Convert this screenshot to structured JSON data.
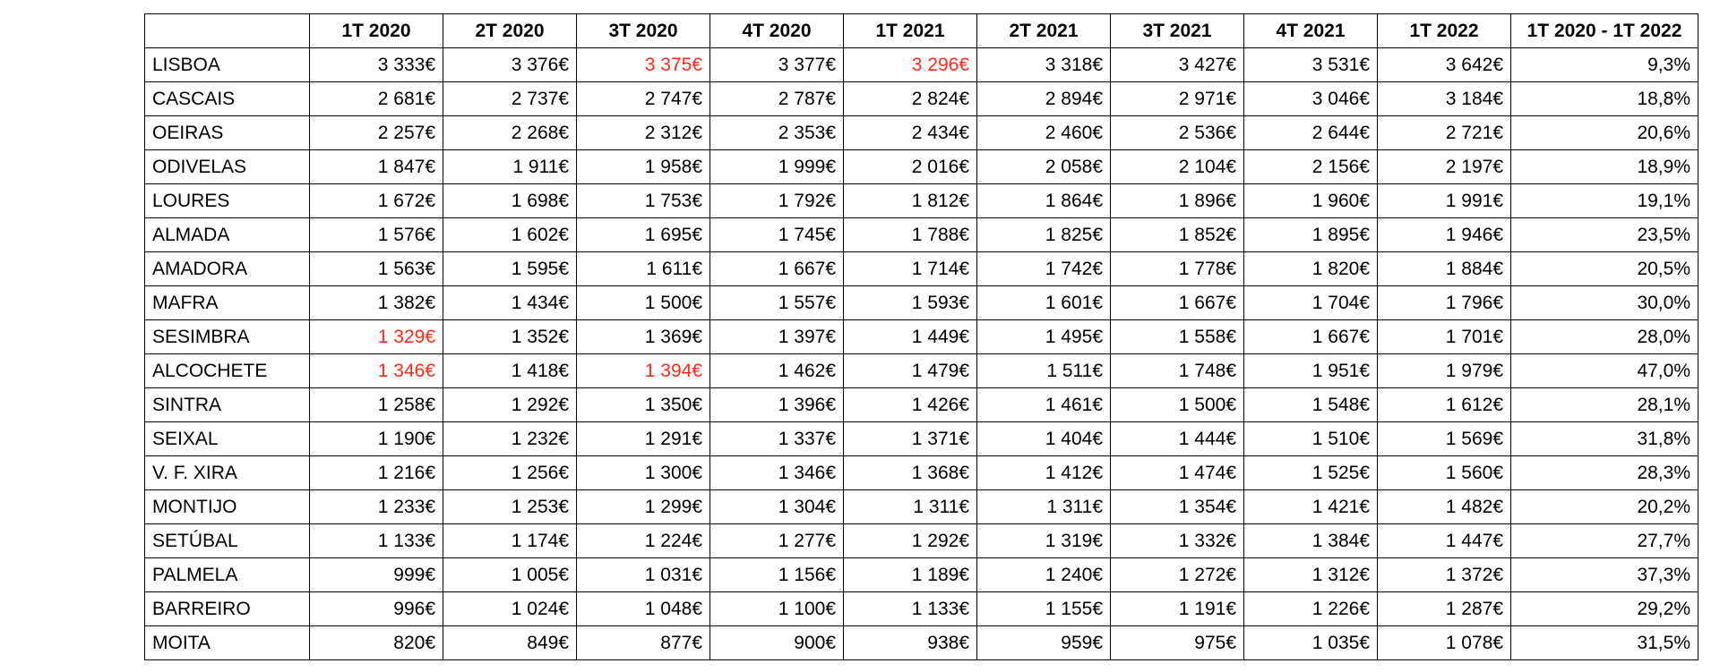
{
  "table": {
    "corner": "",
    "headers": [
      "1T 2020",
      "2T 2020",
      "3T 2020",
      "4T 2020",
      "1T 2021",
      "2T 2021",
      "3T 2021",
      "4T 2021",
      "1T 2022",
      "1T 2020 - 1T 2022"
    ],
    "highlight_color": "#ff2a1a",
    "rows": [
      {
        "name": "LISBOA",
        "values": [
          "3 333€",
          "3 376€",
          "3 375€",
          "3 377€",
          "3 296€",
          "3 318€",
          "3 427€",
          "3 531€",
          "3 642€",
          "9,3%"
        ],
        "highlight": [
          2,
          4
        ]
      },
      {
        "name": "CASCAIS",
        "values": [
          "2 681€",
          "2 737€",
          "2 747€",
          "2 787€",
          "2 824€",
          "2 894€",
          "2 971€",
          "3 046€",
          "3 184€",
          "18,8%"
        ],
        "highlight": []
      },
      {
        "name": "OEIRAS",
        "values": [
          "2 257€",
          "2 268€",
          "2 312€",
          "2 353€",
          "2 434€",
          "2 460€",
          "2 536€",
          "2 644€",
          "2 721€",
          "20,6%"
        ],
        "highlight": []
      },
      {
        "name": "ODIVELAS",
        "values": [
          "1 847€",
          "1 911€",
          "1 958€",
          "1 999€",
          "2 016€",
          "2 058€",
          "2 104€",
          "2 156€",
          "2 197€",
          "18,9%"
        ],
        "highlight": []
      },
      {
        "name": "LOURES",
        "values": [
          "1 672€",
          "1 698€",
          "1 753€",
          "1 792€",
          "1 812€",
          "1 864€",
          "1 896€",
          "1 960€",
          "1 991€",
          "19,1%"
        ],
        "highlight": []
      },
      {
        "name": "ALMADA",
        "values": [
          "1 576€",
          "1 602€",
          "1 695€",
          "1 745€",
          "1 788€",
          "1 825€",
          "1 852€",
          "1 895€",
          "1 946€",
          "23,5%"
        ],
        "highlight": []
      },
      {
        "name": "AMADORA",
        "values": [
          "1 563€",
          "1 595€",
          "1 611€",
          "1 667€",
          "1 714€",
          "1 742€",
          "1 778€",
          "1 820€",
          "1 884€",
          "20,5%"
        ],
        "highlight": []
      },
      {
        "name": "MAFRA",
        "values": [
          "1 382€",
          "1 434€",
          "1 500€",
          "1 557€",
          "1 593€",
          "1 601€",
          "1 667€",
          "1 704€",
          "1 796€",
          "30,0%"
        ],
        "highlight": []
      },
      {
        "name": "SESIMBRA",
        "values": [
          "1 329€",
          "1 352€",
          "1 369€",
          "1 397€",
          "1 449€",
          "1 495€",
          "1 558€",
          "1 667€",
          "1 701€",
          "28,0%"
        ],
        "highlight": [
          0
        ]
      },
      {
        "name": "ALCOCHETE",
        "values": [
          "1 346€",
          "1 418€",
          "1 394€",
          "1 462€",
          "1 479€",
          "1 511€",
          "1 748€",
          "1 951€",
          "1 979€",
          "47,0%"
        ],
        "highlight": [
          0,
          2
        ]
      },
      {
        "name": "SINTRA",
        "values": [
          "1 258€",
          "1 292€",
          "1 350€",
          "1 396€",
          "1 426€",
          "1 461€",
          "1 500€",
          "1 548€",
          "1 612€",
          "28,1%"
        ],
        "highlight": []
      },
      {
        "name": "SEIXAL",
        "values": [
          "1 190€",
          "1 232€",
          "1 291€",
          "1 337€",
          "1 371€",
          "1 404€",
          "1 444€",
          "1 510€",
          "1 569€",
          "31,8%"
        ],
        "highlight": []
      },
      {
        "name": "V. F. XIRA",
        "values": [
          "1 216€",
          "1 256€",
          "1 300€",
          "1 346€",
          "1 368€",
          "1 412€",
          "1 474€",
          "1 525€",
          "1 560€",
          "28,3%"
        ],
        "highlight": []
      },
      {
        "name": "MONTIJO",
        "values": [
          "1 233€",
          "1 253€",
          "1 299€",
          "1 304€",
          "1 311€",
          "1 311€",
          "1 354€",
          "1 421€",
          "1 482€",
          "20,2%"
        ],
        "highlight": []
      },
      {
        "name": "SETÚBAL",
        "values": [
          "1 133€",
          "1 174€",
          "1 224€",
          "1 277€",
          "1 292€",
          "1 319€",
          "1 332€",
          "1 384€",
          "1 447€",
          "27,7%"
        ],
        "highlight": []
      },
      {
        "name": "PALMELA",
        "values": [
          "999€",
          "1 005€",
          "1 031€",
          "1 156€",
          "1 189€",
          "1 240€",
          "1 272€",
          "1 312€",
          "1 372€",
          "37,3%"
        ],
        "highlight": []
      },
      {
        "name": "BARREIRO",
        "values": [
          "996€",
          "1 024€",
          "1 048€",
          "1 100€",
          "1 133€",
          "1 155€",
          "1 191€",
          "1 226€",
          "1 287€",
          "29,2%"
        ],
        "highlight": []
      },
      {
        "name": "MOITA",
        "values": [
          "820€",
          "849€",
          "877€",
          "900€",
          "938€",
          "959€",
          "975€",
          "1 035€",
          "1 078€",
          "31,5%"
        ],
        "highlight": []
      }
    ]
  }
}
